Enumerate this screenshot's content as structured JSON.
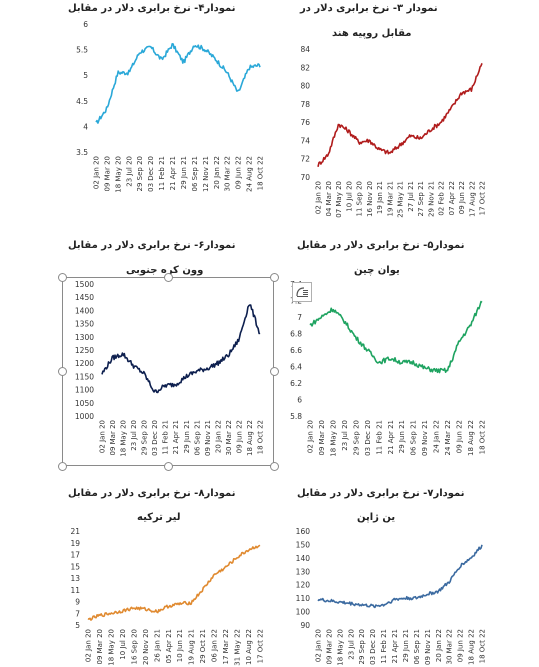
{
  "captions": {
    "c4": "نمودار۴- نرخ برابری دلار در مقابل",
    "c3": "نمودار ۳- نرخ برابری دلار در",
    "c3b": "مقابل روپیه هند",
    "c6": "نمودار۶- نرخ برابری دلار در مقابل",
    "c6b": "وون کره جنوبی",
    "c5": "نمودار۵- نرخ برابری دلار در مقابل",
    "c5b": "یوان چین",
    "c8": "نمودار۸- نرخ برابری دلار در مقابل",
    "c8b": "لیر ترکیه",
    "c7": "نمودار۷- نرخ برابری دلار در مقابل",
    "c7b": "ین ژاپن"
  },
  "layout_options_icon": "layout-options-icon",
  "chart_data": [
    {
      "id": "chart4",
      "type": "line",
      "color": "#2aa8d8",
      "ylim": [
        3.5,
        6
      ],
      "yticks": [
        "3.5",
        "4",
        "4.5",
        "5",
        "5.5",
        "6"
      ],
      "x": [
        "02 Jan 20",
        "09 Mar 20",
        "18 May 20",
        "23 Jul 20",
        "29 Sep 20",
        "03 Dec 20",
        "11 Feb 21",
        "21 Apr 21",
        "29 Jun 21",
        "06 Sep 21",
        "12 Nov 21",
        "20 Jan 22",
        "30 Mar 22",
        "09 Jun 22",
        "24 Aug 22",
        "18 Oct 22"
      ],
      "x_tick_labels": [
        "02 Jan 20",
        "09 Mar 20",
        "18 May 20",
        "23 Jul 20",
        "29 Sep 20",
        "03 Dec 20",
        "11 Feb 21",
        "21 Apr 21",
        "29 Jun 21",
        "06 Sep 21",
        "12 Nov 21",
        "20 Jan 22",
        "30 Mar 22",
        "09 Jun 22",
        "24 Aug 22",
        "18 Oct 22"
      ],
      "y": [
        4.05,
        4.35,
        5.05,
        5.05,
        5.45,
        5.55,
        5.3,
        5.6,
        5.25,
        5.6,
        5.5,
        5.3,
        5.05,
        4.65,
        5.15,
        5.2
      ]
    },
    {
      "id": "chart3",
      "type": "line",
      "color": "#b01c1c",
      "ylim": [
        70,
        84
      ],
      "yticks": [
        "70",
        "72",
        "74",
        "76",
        "78",
        "80",
        "82",
        "84"
      ],
      "x": [
        "02 Jan 20",
        "04 Mar 20",
        "05 May 20",
        "07 Jul 20",
        "10 Sep 20",
        "12 Nov 20",
        "15 Jan 21",
        "19 Mar 21",
        "25 May 21",
        "27 Jul 21",
        "01 Oct 21",
        "02 Dec 21",
        "07 Feb 22",
        "12 Apr 22",
        "15 Jun 22",
        "17 Aug 22",
        "17 Oct 22"
      ],
      "x_tick_labels": [
        "02 Jan 20",
        "04 Mar 20",
        "07 May 20",
        "10 Jul 20",
        "11 Sep 20",
        "16 Nov 20",
        "19 Jan 21",
        "19 Mar 21",
        "25 May 21",
        "27 Jul 21",
        "27 Sep 21",
        "29 Nov 21",
        "02 Feb 22",
        "07 Apr 22",
        "09 Jun 22",
        "17 Aug 22",
        "17 Oct 22"
      ],
      "y": [
        71.3,
        72.5,
        75.8,
        75.0,
        73.8,
        74.0,
        73.0,
        72.6,
        73.5,
        74.5,
        74.2,
        75.2,
        76.0,
        77.5,
        79.2,
        79.6,
        82.5
      ]
    },
    {
      "id": "chart6",
      "type": "line",
      "color": "#0d1f4e",
      "ylim": [
        1000,
        1500
      ],
      "yticks": [
        "1000",
        "1050",
        "1100",
        "1150",
        "1200",
        "1250",
        "1300",
        "1350",
        "1400",
        "1450",
        "1500"
      ],
      "x": [
        "02 Jan 20",
        "09 Mar 20",
        "18 May 20",
        "23 Jul 20",
        "29 Sep 20",
        "03 Dec 20",
        "11 Feb 21",
        "21 Apr 21",
        "29 Jun 21",
        "06 Sep 21",
        "09 Nov 21",
        "20 Jan 22",
        "30 Mar 22",
        "09 Jun 22",
        "18 Aug 22",
        "18 Oct 22"
      ],
      "x_tick_labels": [
        "02 Jan 20",
        "09 Mar 20",
        "18 May 20",
        "23 Jul 20",
        "29 Sep 20",
        "03 Dec 20",
        "11 Feb 21",
        "21 Apr 21",
        "29 Jun 21",
        "06 Sep 21",
        "09 Nov 21",
        "20 Jan 22",
        "30 Mar 22",
        "09 Jun 22",
        "18 Aug 22",
        "18 Oct 22"
      ],
      "y": [
        1160,
        1220,
        1235,
        1190,
        1160,
        1090,
        1115,
        1120,
        1150,
        1170,
        1180,
        1200,
        1230,
        1290,
        1430,
        1310
      ]
    },
    {
      "id": "chart5",
      "type": "line",
      "color": "#1ea360",
      "ylim": [
        5.8,
        7.4
      ],
      "yticks": [
        "5.8",
        "6",
        "6.2",
        "6.4",
        "6.6",
        "6.8",
        "7",
        "7.2",
        "7.4"
      ],
      "x": [
        "02 Jan 20",
        "09 Mar 20",
        "18 May 20",
        "23 Jul 20",
        "29 Sep 20",
        "03 Dec 20",
        "11 Feb 21",
        "21 Apr 21",
        "29 Jun 21",
        "06 Sep 21",
        "09 Nov 21",
        "24 Jan 22",
        "24 Mar 22",
        "09 Jun 22",
        "18 Aug 22",
        "18 Oct 22"
      ],
      "x_tick_labels": [
        "02 Jan 20",
        "09 Mar 20",
        "18 May 20",
        "23 Jul 20",
        "29 Sep 20",
        "03 Dec 20",
        "11 Feb 21",
        "21 Apr 21",
        "29 Jun 21",
        "06 Sep 21",
        "09 Nov 21",
        "24 Jan 22",
        "24 Mar 22",
        "09 Jun 22",
        "18 Aug 22",
        "18 Oct 22"
      ],
      "y": [
        6.9,
        7.0,
        7.1,
        6.95,
        6.75,
        6.6,
        6.45,
        6.5,
        6.45,
        6.45,
        6.38,
        6.35,
        6.35,
        6.7,
        6.9,
        7.2
      ]
    },
    {
      "id": "chart8",
      "type": "line",
      "color": "#e08a30",
      "ylim": [
        5,
        21
      ],
      "yticks": [
        "5",
        "7",
        "9",
        "11",
        "13",
        "15",
        "17",
        "19",
        "21"
      ],
      "x": [
        "02 Jan 20",
        "09 Mar 20",
        "18 May 20",
        "23 Jul 20",
        "29 Sep 20",
        "03 Dec 20",
        "11 Feb 21",
        "21 Apr 21",
        "29 Jun 21",
        "06 Sep 21",
        "09 Nov 21",
        "20 Jan 22",
        "30 Mar 22",
        "09 Jun 22",
        "18 Aug 22",
        "17 Oct 22"
      ],
      "x_tick_labels": [
        "02 Jan 20",
        "09 Mar 20",
        "18 May 20",
        "10 Jul 20",
        "16 Sep 20",
        "20 Nov 20",
        "26 Jan 21",
        "05 Apr 21",
        "10 Jun 21",
        "19 Aug 21",
        "29 Oct 21",
        "06 Jan 22",
        "17 Mar 22",
        "31 May 22",
        "10 Aug 22",
        "17 Oct 22"
      ],
      "y": [
        5.9,
        6.6,
        7.0,
        7.4,
        7.9,
        7.7,
        7.3,
        8.2,
        8.6,
        8.8,
        11.0,
        13.5,
        14.8,
        16.5,
        17.8,
        18.6
      ]
    },
    {
      "id": "chart7",
      "type": "line",
      "color": "#3b6aa0",
      "ylim": [
        90,
        160
      ],
      "yticks": [
        "90",
        "100",
        "110",
        "120",
        "130",
        "140",
        "150",
        "160"
      ],
      "x": [
        "02 Jan 20",
        "09 Mar 20",
        "18 May 20",
        "23 Jul 20",
        "29 Sep 20",
        "03 Dec 20",
        "11 Feb 21",
        "21 Apr 21",
        "29 Jun 21",
        "06 Sep 21",
        "09 Nov 21",
        "20 Jan 22",
        "30 Mar 22",
        "09 Jun 22",
        "18 Aug 22",
        "18 Oct 22"
      ],
      "x_tick_labels": [
        "02 Jan 20",
        "09 Mar 20",
        "18 May 20",
        "23 Jul 20",
        "29 Sep 20",
        "03 Dec 20",
        "11 Feb 21",
        "21 Apr 21",
        "29 Jun 21",
        "06 Sep 21",
        "09 Nov 21",
        "20 Jan 22",
        "30 Mar 22",
        "09 Jun 22",
        "18 Aug 22",
        "18 Oct 22"
      ],
      "y": [
        109,
        108,
        107,
        106,
        105,
        104,
        105,
        109,
        110,
        110,
        113,
        115,
        122,
        134,
        140,
        149
      ]
    }
  ]
}
